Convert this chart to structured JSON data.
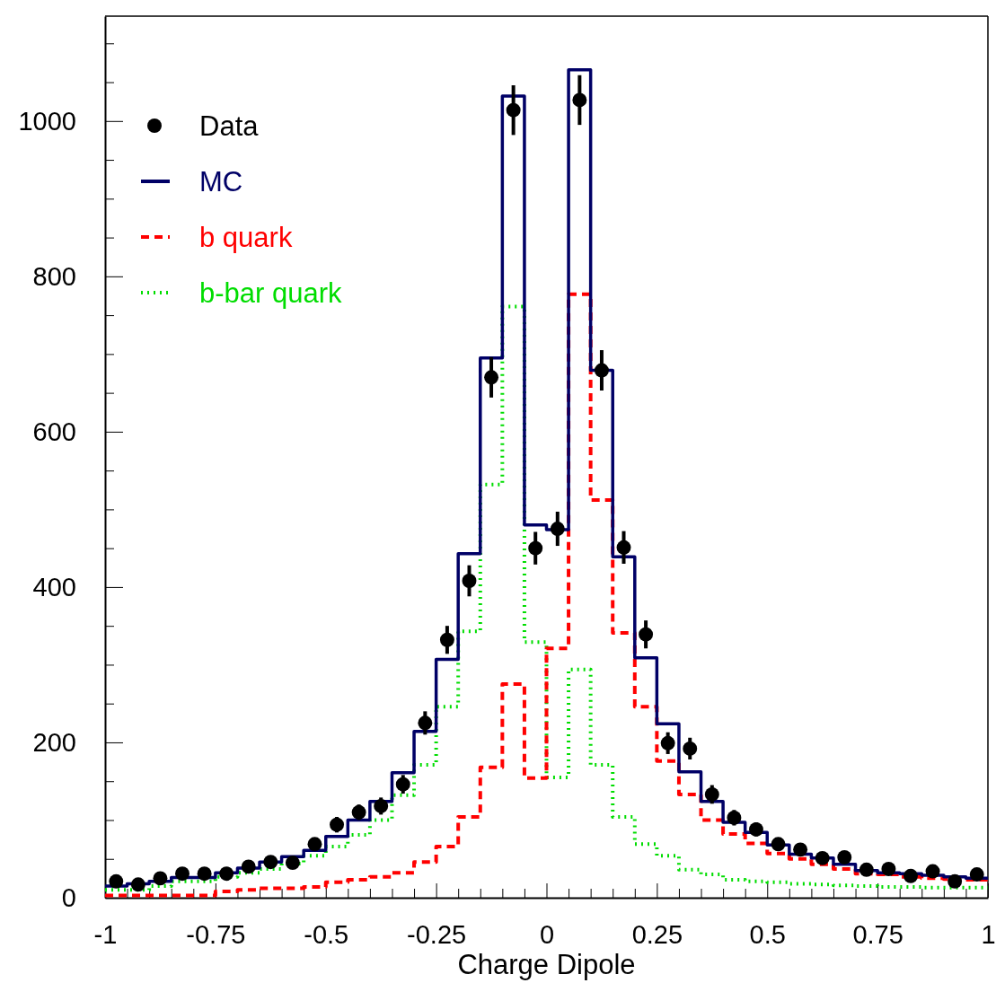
{
  "chart_data": {
    "type": "histogram",
    "xlabel": "Charge Dipole",
    "bins": [
      -1,
      -0.95,
      -0.9,
      -0.85,
      -0.8,
      -0.75,
      -0.7,
      -0.65,
      -0.6,
      -0.55,
      -0.5,
      -0.45,
      -0.4,
      -0.35,
      -0.3,
      -0.25,
      -0.2,
      -0.15,
      -0.1,
      -0.05,
      0,
      0.05,
      0.1,
      0.15,
      0.2,
      0.25,
      0.3,
      0.35,
      0.4,
      0.45,
      0.5,
      0.55,
      0.6,
      0.65,
      0.7,
      0.75,
      0.8,
      0.85,
      0.9,
      0.95,
      1
    ],
    "xlim": [
      -1,
      1
    ],
    "xticks": [
      -1,
      {
        "value": -0.95,
        "label": null
      },
      {
        "value": -0.9,
        "label": null
      },
      {
        "value": -0.85,
        "label": null
      },
      {
        "value": -0.8,
        "label": null
      },
      -0.75,
      {
        "value": -0.7,
        "label": null
      },
      {
        "value": -0.65,
        "label": null
      },
      {
        "value": -0.6,
        "label": null
      },
      {
        "value": -0.55,
        "label": null
      },
      -0.5,
      {
        "value": -0.45,
        "label": null
      },
      {
        "value": -0.4,
        "label": null
      },
      {
        "value": -0.35,
        "label": null
      },
      {
        "value": -0.3,
        "label": null
      },
      -0.25,
      {
        "value": -0.2,
        "label": null
      },
      {
        "value": -0.15,
        "label": null
      },
      {
        "value": -0.1,
        "label": null
      },
      {
        "value": -0.05,
        "label": null
      },
      0,
      {
        "value": 0.05,
        "label": null
      },
      {
        "value": 0.1,
        "label": null
      },
      {
        "value": 0.15,
        "label": null
      },
      {
        "value": 0.2,
        "label": null
      },
      0.25,
      {
        "value": 0.3,
        "label": null
      },
      {
        "value": 0.35,
        "label": null
      },
      {
        "value": 0.4,
        "label": null
      },
      {
        "value": 0.45,
        "label": null
      },
      0.5,
      {
        "value": 0.55,
        "label": null
      },
      {
        "value": 0.6,
        "label": null
      },
      {
        "value": 0.65,
        "label": null
      },
      {
        "value": 0.7,
        "label": null
      },
      0.75,
      {
        "value": 0.8,
        "label": null
      },
      {
        "value": 0.85,
        "label": null
      },
      {
        "value": 0.9,
        "label": null
      },
      {
        "value": 0.95,
        "label": null
      },
      1
    ],
    "ylim": [
      0,
      1135
    ],
    "yticks": [
      0,
      {
        "value": 50,
        "label": null
      },
      {
        "value": 100,
        "label": null
      },
      {
        "value": 150,
        "label": null
      },
      200,
      {
        "value": 250,
        "label": null
      },
      {
        "value": 300,
        "label": null
      },
      {
        "value": 350,
        "label": null
      },
      400,
      {
        "value": 450,
        "label": null
      },
      {
        "value": 500,
        "label": null
      },
      {
        "value": 550,
        "label": null
      },
      600,
      {
        "value": 650,
        "label": null
      },
      {
        "value": 700,
        "label": null
      },
      {
        "value": 750,
        "label": null
      },
      800,
      {
        "value": 850,
        "label": null
      },
      {
        "value": 900,
        "label": null
      },
      {
        "value": 950,
        "label": null
      },
      1000,
      {
        "value": 1050,
        "label": null
      },
      {
        "value": 1100,
        "label": null
      }
    ],
    "legend": "top left",
    "grid": false,
    "series": [
      {
        "name": "Data",
        "type": "scatter",
        "color": "#000000",
        "marker": "circle",
        "x": [
          -0.975,
          -0.925,
          -0.875,
          -0.825,
          -0.775,
          -0.725,
          -0.675,
          -0.625,
          -0.575,
          -0.525,
          -0.475,
          -0.425,
          -0.375,
          -0.325,
          -0.275,
          -0.225,
          -0.175,
          -0.125,
          -0.075,
          -0.025,
          0.025,
          0.075,
          0.125,
          0.175,
          0.225,
          0.275,
          0.325,
          0.375,
          0.425,
          0.475,
          0.525,
          0.575,
          0.625,
          0.675,
          0.725,
          0.775,
          0.825,
          0.875,
          0.925,
          0.975
        ],
        "values": [
          21,
          17,
          25,
          31,
          31,
          31,
          40,
          46,
          45,
          69,
          94,
          110,
          118,
          146,
          225,
          332,
          408,
          670,
          1014,
          450,
          475,
          1027,
          679,
          451,
          339,
          199,
          192,
          133,
          103,
          88,
          69,
          62,
          51,
          52,
          36,
          37,
          28,
          34,
          21,
          30
        ],
        "errors": [
          5,
          4,
          5,
          6,
          6,
          6,
          6,
          7,
          7,
          8,
          10,
          10,
          11,
          12,
          15,
          18,
          20,
          26,
          32,
          21,
          22,
          32,
          26,
          21,
          18,
          14,
          14,
          12,
          10,
          9,
          8,
          8,
          7,
          7,
          6,
          6,
          5,
          6,
          5,
          5
        ]
      },
      {
        "name": "MC",
        "color": "#000066",
        "line_style": "solid",
        "values": [
          15,
          18,
          21,
          26,
          26,
          32,
          38,
          46,
          53,
          61,
          79,
          100,
          124,
          161,
          214,
          307,
          443,
          695,
          1032,
          480,
          474,
          1066,
          679,
          439,
          309,
          224,
          162,
          124,
          97,
          84,
          68,
          56,
          51,
          43,
          35,
          32,
          31,
          29,
          27,
          25
        ]
      },
      {
        "name": "b quark",
        "color": "#ff0000",
        "line_style": "dashed",
        "values": [
          3,
          3,
          3,
          3,
          3,
          8,
          10,
          12,
          12,
          14,
          20,
          23,
          27,
          32,
          46,
          66,
          104,
          168,
          275,
          154,
          321,
          777,
          512,
          341,
          246,
          176,
          133,
          100,
          82,
          70,
          57,
          50,
          43,
          37,
          31,
          30,
          27,
          25,
          24,
          23
        ]
      },
      {
        "name": "b-bar quark",
        "color": "#00dd00",
        "line_style": "dotted",
        "values": [
          10,
          10,
          15,
          21,
          21,
          27,
          32,
          37,
          44,
          54,
          66,
          81,
          100,
          132,
          171,
          246,
          343,
          532,
          761,
          329,
          155,
          294,
          171,
          104,
          69,
          54,
          36,
          30,
          23,
          21,
          20,
          18,
          17,
          16,
          15,
          14,
          14,
          13,
          13,
          13
        ]
      }
    ]
  }
}
